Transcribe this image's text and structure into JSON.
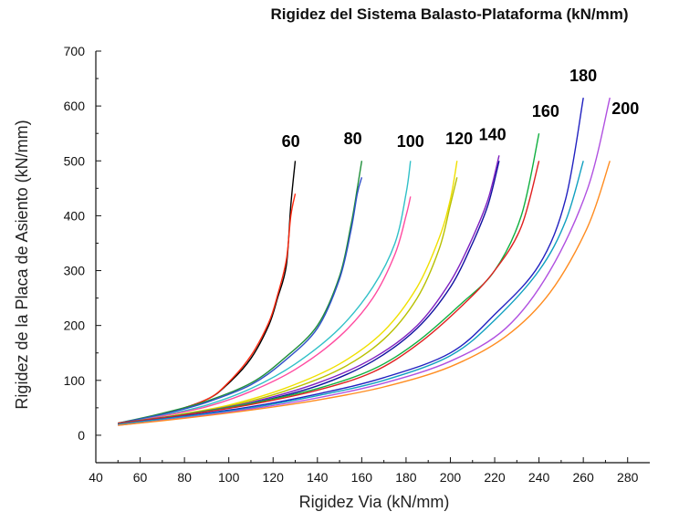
{
  "chart_data": {
    "type": "line",
    "title": "Rigidez del Sistema Balasto-Plataforma (kN/mm)",
    "xlabel": "Rigidez Via (kN/mm)",
    "ylabel": "Rigidez de la Placa de Asiento (kN/mm)",
    "xlim": [
      40,
      290
    ],
    "ylim": [
      -50,
      700
    ],
    "xticks": [
      "40",
      "60",
      "80",
      "100",
      "120",
      "140",
      "160",
      "180",
      "200",
      "220",
      "240",
      "260",
      "280"
    ],
    "yticks": [
      "0",
      "100",
      "200",
      "300",
      "400",
      "500",
      "600",
      "700"
    ],
    "grid": false,
    "legend": "inline labels above curve ends",
    "series": [
      {
        "name": "60",
        "color": "#000000",
        "points": [
          [
            50,
            20
          ],
          [
            70,
            38
          ],
          [
            90,
            65
          ],
          [
            100,
            95
          ],
          [
            110,
            140
          ],
          [
            118,
            200
          ],
          [
            122,
            250
          ],
          [
            126,
            310
          ],
          [
            128,
            420
          ],
          [
            130,
            500
          ]
        ]
      },
      {
        "name": "60",
        "color": "#ff2a10",
        "points": [
          [
            50,
            20
          ],
          [
            70,
            38
          ],
          [
            90,
            65
          ],
          [
            100,
            97
          ],
          [
            110,
            145
          ],
          [
            118,
            205
          ],
          [
            122,
            255
          ],
          [
            126,
            320
          ],
          [
            128,
            400
          ],
          [
            130,
            440
          ]
        ]
      },
      {
        "name": "80",
        "color": "#1f8f3a",
        "points": [
          [
            50,
            22
          ],
          [
            70,
            40
          ],
          [
            90,
            62
          ],
          [
            110,
            95
          ],
          [
            125,
            140
          ],
          [
            140,
            200
          ],
          [
            150,
            290
          ],
          [
            155,
            380
          ],
          [
            158,
            450
          ],
          [
            160,
            500
          ]
        ]
      },
      {
        "name": "80",
        "color": "#3050c8",
        "points": [
          [
            50,
            22
          ],
          [
            70,
            38
          ],
          [
            90,
            60
          ],
          [
            110,
            92
          ],
          [
            125,
            135
          ],
          [
            140,
            195
          ],
          [
            150,
            285
          ],
          [
            155,
            370
          ],
          [
            158,
            440
          ],
          [
            160,
            470
          ]
        ]
      },
      {
        "name": "100",
        "color": "#30c0c8",
        "points": [
          [
            50,
            20
          ],
          [
            70,
            36
          ],
          [
            90,
            55
          ],
          [
            110,
            85
          ],
          [
            130,
            130
          ],
          [
            150,
            195
          ],
          [
            165,
            270
          ],
          [
            175,
            350
          ],
          [
            180,
            440
          ],
          [
            182,
            500
          ]
        ]
      },
      {
        "name": "100",
        "color": "#ff4aa0",
        "points": [
          [
            50,
            20
          ],
          [
            70,
            35
          ],
          [
            90,
            52
          ],
          [
            110,
            80
          ],
          [
            130,
            120
          ],
          [
            150,
            180
          ],
          [
            165,
            250
          ],
          [
            175,
            330
          ],
          [
            180,
            400
          ],
          [
            182,
            435
          ]
        ]
      },
      {
        "name": "120",
        "color": "#f0e000",
        "points": [
          [
            52,
            20
          ],
          [
            75,
            36
          ],
          [
            100,
            55
          ],
          [
            125,
            85
          ],
          [
            150,
            130
          ],
          [
            170,
            190
          ],
          [
            185,
            270
          ],
          [
            195,
            360
          ],
          [
            200,
            430
          ],
          [
            203,
            500
          ]
        ]
      },
      {
        "name": "120",
        "color": "#b8c000",
        "points": [
          [
            52,
            20
          ],
          [
            75,
            35
          ],
          [
            100,
            53
          ],
          [
            125,
            80
          ],
          [
            150,
            120
          ],
          [
            170,
            175
          ],
          [
            185,
            250
          ],
          [
            195,
            340
          ],
          [
            200,
            420
          ],
          [
            203,
            470
          ]
        ]
      },
      {
        "name": "140",
        "color": "#8020c0",
        "points": [
          [
            50,
            20
          ],
          [
            80,
            38
          ],
          [
            110,
            60
          ],
          [
            140,
            95
          ],
          [
            165,
            140
          ],
          [
            185,
            200
          ],
          [
            200,
            280
          ],
          [
            210,
            360
          ],
          [
            217,
            430
          ],
          [
            222,
            510
          ]
        ]
      },
      {
        "name": "140",
        "color": "#1010a0",
        "points": [
          [
            50,
            20
          ],
          [
            80,
            37
          ],
          [
            110,
            58
          ],
          [
            140,
            90
          ],
          [
            165,
            135
          ],
          [
            185,
            195
          ],
          [
            200,
            270
          ],
          [
            210,
            350
          ],
          [
            217,
            420
          ],
          [
            222,
            500
          ]
        ]
      },
      {
        "name": "160",
        "color": "#10b040",
        "points": [
          [
            50,
            22
          ],
          [
            80,
            38
          ],
          [
            110,
            58
          ],
          [
            140,
            85
          ],
          [
            165,
            120
          ],
          [
            185,
            170
          ],
          [
            205,
            240
          ],
          [
            220,
            300
          ],
          [
            232,
            400
          ],
          [
            240,
            550
          ]
        ]
      },
      {
        "name": "160",
        "color": "#e02020",
        "points": [
          [
            50,
            22
          ],
          [
            80,
            37
          ],
          [
            110,
            56
          ],
          [
            140,
            82
          ],
          [
            165,
            115
          ],
          [
            185,
            165
          ],
          [
            205,
            235
          ],
          [
            220,
            300
          ],
          [
            232,
            380
          ],
          [
            240,
            500
          ]
        ]
      },
      {
        "name": "180",
        "color": "#2020c0",
        "points": [
          [
            50,
            20
          ],
          [
            80,
            35
          ],
          [
            110,
            52
          ],
          [
            140,
            75
          ],
          [
            170,
            105
          ],
          [
            200,
            150
          ],
          [
            220,
            220
          ],
          [
            240,
            310
          ],
          [
            252,
            430
          ],
          [
            260,
            615
          ]
        ]
      },
      {
        "name": "180",
        "color": "#10a0c0",
        "points": [
          [
            50,
            20
          ],
          [
            80,
            34
          ],
          [
            110,
            50
          ],
          [
            140,
            72
          ],
          [
            170,
            100
          ],
          [
            200,
            145
          ],
          [
            220,
            210
          ],
          [
            240,
            300
          ],
          [
            252,
            390
          ],
          [
            260,
            500
          ]
        ]
      },
      {
        "name": "200",
        "color": "#b050e0",
        "points": [
          [
            50,
            18
          ],
          [
            80,
            32
          ],
          [
            110,
            48
          ],
          [
            140,
            68
          ],
          [
            170,
            95
          ],
          [
            200,
            135
          ],
          [
            225,
            195
          ],
          [
            245,
            300
          ],
          [
            262,
            450
          ],
          [
            272,
            615
          ]
        ]
      },
      {
        "name": "200",
        "color": "#ff8c20",
        "points": [
          [
            50,
            18
          ],
          [
            80,
            31
          ],
          [
            110,
            46
          ],
          [
            140,
            64
          ],
          [
            170,
            88
          ],
          [
            200,
            125
          ],
          [
            225,
            180
          ],
          [
            245,
            260
          ],
          [
            262,
            380
          ],
          [
            272,
            500
          ]
        ]
      }
    ],
    "annotations": [
      {
        "text": "60",
        "x": 128,
        "y": 525
      },
      {
        "text": "80",
        "x": 156,
        "y": 530
      },
      {
        "text": "100",
        "x": 182,
        "y": 525
      },
      {
        "text": "120",
        "x": 204,
        "y": 530
      },
      {
        "text": "140",
        "x": 219,
        "y": 538
      },
      {
        "text": "160",
        "x": 243,
        "y": 580
      },
      {
        "text": "180",
        "x": 260,
        "y": 645
      },
      {
        "text": "200",
        "x": 279,
        "y": 585
      }
    ]
  }
}
